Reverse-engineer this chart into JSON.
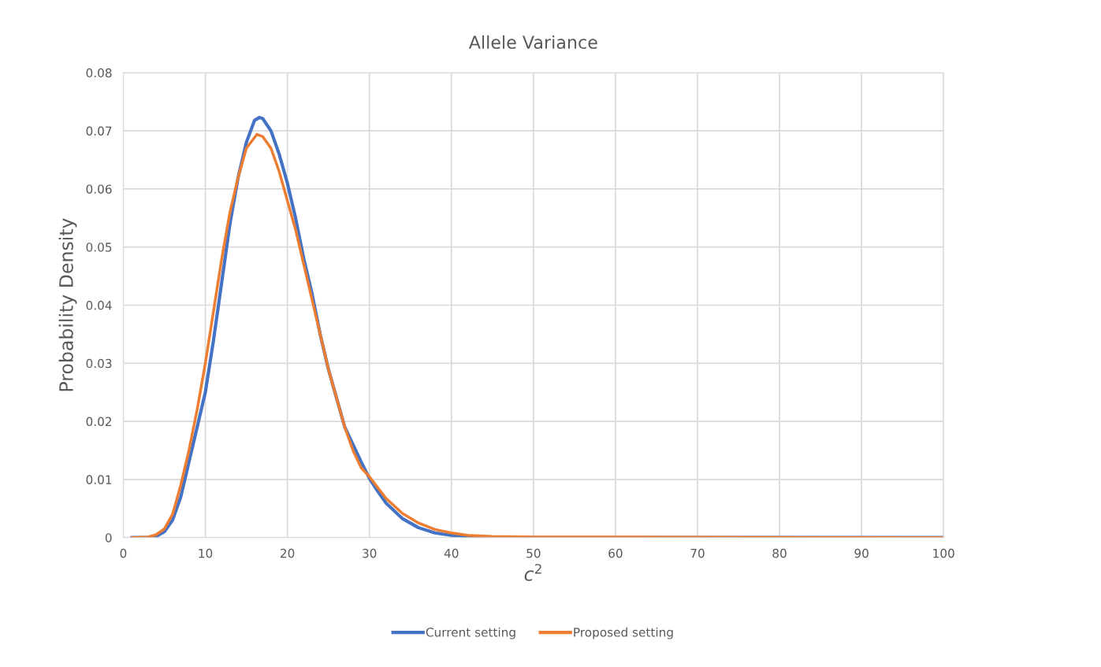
{
  "chart_data": {
    "type": "line",
    "title": "Allele Variance",
    "xlabel": "c$^{2}$",
    "ylabel": "Probability Density",
    "xlim": [
      0,
      100
    ],
    "xticks": [
      0,
      10,
      20,
      30,
      40,
      50,
      60,
      70,
      80,
      90,
      100
    ],
    "ylim": [
      0,
      0.08
    ],
    "yticks": [
      {
        "value": 0,
        "label": "0"
      },
      0.01,
      0.02,
      0.03,
      0.04,
      0.05,
      0.06,
      0.07,
      0.08
    ],
    "grid": true,
    "legend": "bottom",
    "marker": "none",
    "line_style": "solid",
    "series": [
      {
        "name": "Current setting",
        "color": "#4472c4",
        "x": [
          1,
          3,
          4,
          5,
          6,
          7,
          8,
          9,
          10,
          11,
          12,
          13,
          14,
          15,
          16,
          16.6,
          17,
          18,
          19,
          20,
          21,
          22,
          23,
          24,
          25,
          26,
          27,
          28,
          29,
          30,
          31,
          32,
          34,
          36,
          38,
          40,
          42,
          45,
          100
        ],
        "values": [
          0,
          0,
          0.0002,
          0.001,
          0.003,
          0.007,
          0.013,
          0.019,
          0.025,
          0.034,
          0.044,
          0.054,
          0.062,
          0.068,
          0.0718,
          0.0723,
          0.0721,
          0.07,
          0.066,
          0.061,
          0.055,
          0.048,
          0.042,
          0.035,
          0.029,
          0.024,
          0.019,
          0.016,
          0.013,
          0.0102,
          0.008,
          0.006,
          0.0033,
          0.0017,
          0.0008,
          0.0004,
          0.0002,
          0,
          0
        ]
      },
      {
        "name": "Proposed setting",
        "color": "#ed7d31",
        "x": [
          1,
          3,
          4,
          5,
          6,
          7,
          8,
          9,
          10,
          11,
          12,
          13,
          14,
          15,
          16.3,
          17,
          18,
          19,
          20,
          21,
          22,
          23,
          24,
          25,
          26,
          27,
          28,
          29,
          30,
          32,
          34,
          36,
          38,
          40,
          42,
          45,
          50,
          100
        ],
        "values": [
          0,
          0.0001,
          0.0005,
          0.0015,
          0.004,
          0.009,
          0.015,
          0.022,
          0.03,
          0.039,
          0.048,
          0.056,
          0.062,
          0.067,
          0.0694,
          0.069,
          0.067,
          0.063,
          0.058,
          0.053,
          0.047,
          0.041,
          0.035,
          0.029,
          0.024,
          0.019,
          0.015,
          0.012,
          0.0105,
          0.0068,
          0.0042,
          0.0025,
          0.0014,
          0.0008,
          0.0004,
          0.0002,
          0.0001,
          0
        ]
      }
    ]
  }
}
